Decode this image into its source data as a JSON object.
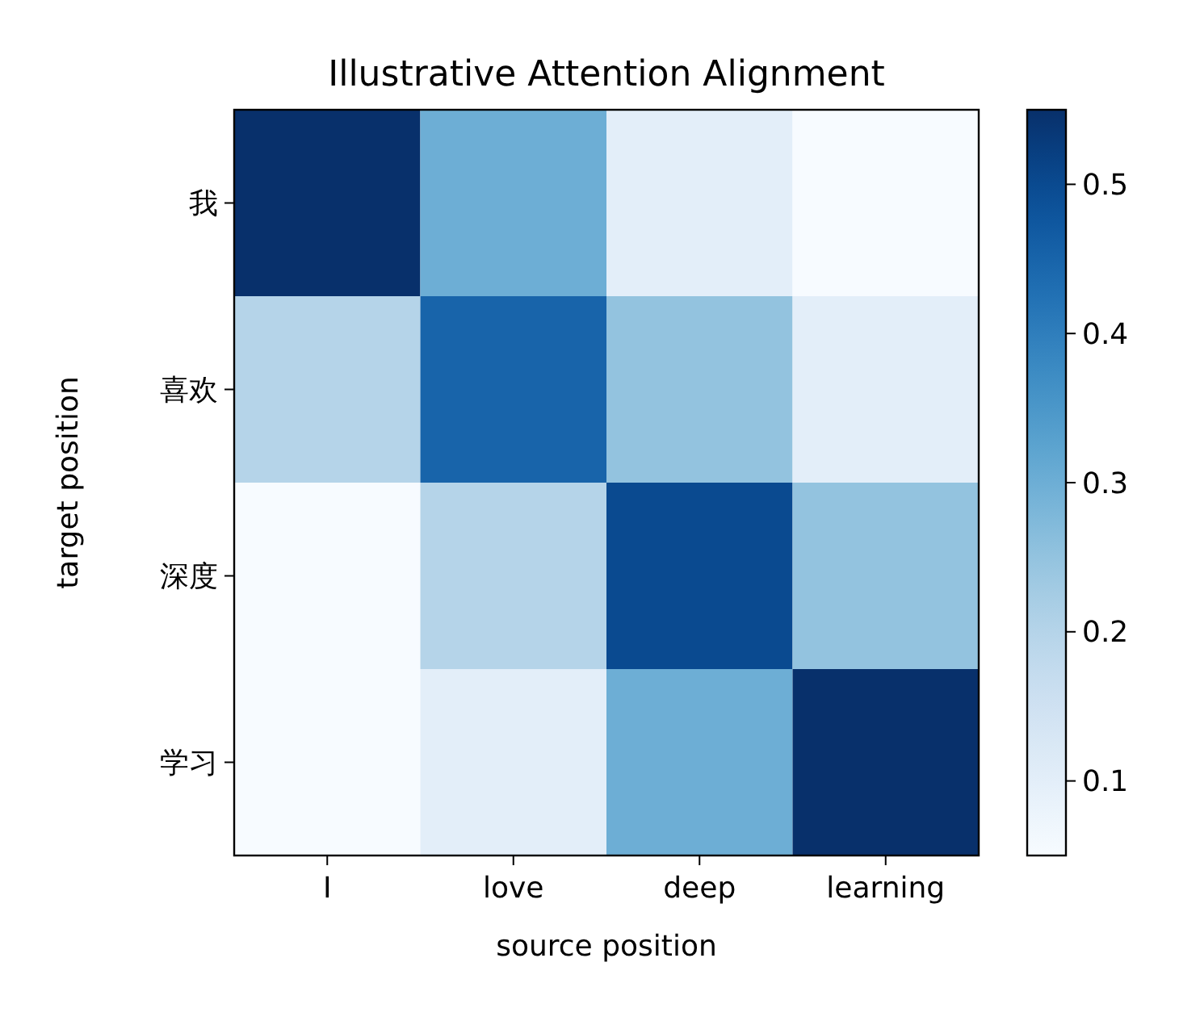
{
  "chart_data": {
    "type": "heatmap",
    "title": "Illustrative Attention Alignment",
    "xlabel": "source position",
    "ylabel": "target position",
    "categories": [
      "I",
      "love",
      "deep",
      "learning"
    ],
    "y_categories": [
      "我",
      "喜欢",
      "深度",
      "学习"
    ],
    "cells": [
      [
        0.55,
        0.3,
        0.1,
        0.05
      ],
      [
        0.2,
        0.45,
        0.25,
        0.1
      ],
      [
        0.05,
        0.2,
        0.5,
        0.25
      ],
      [
        0.05,
        0.1,
        0.3,
        0.55
      ]
    ],
    "clim": [
      0.05,
      0.55
    ],
    "cticks": [
      0.1,
      0.2,
      0.3,
      0.4,
      0.5
    ]
  }
}
